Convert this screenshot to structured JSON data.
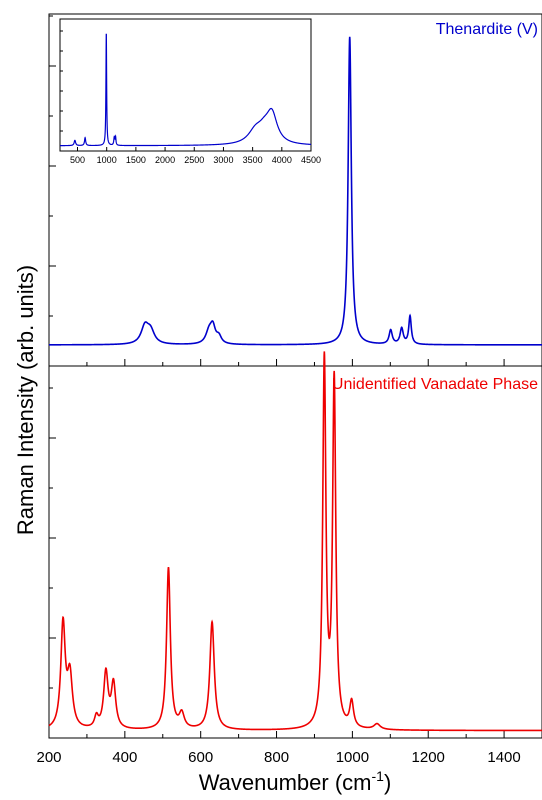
{
  "chart_data": [
    {
      "type": "line",
      "panel": "top",
      "title": "Thenardite (V)",
      "color": "#0000cc",
      "xlim": [
        200,
        1500
      ],
      "ylim": [
        0,
        1
      ],
      "baseline": 0.06,
      "peaks": [
        {
          "x": 453,
          "h": 0.05,
          "w": 12
        },
        {
          "x": 468,
          "h": 0.035,
          "w": 12
        },
        {
          "x": 622,
          "h": 0.035,
          "w": 10
        },
        {
          "x": 632,
          "h": 0.045,
          "w": 8
        },
        {
          "x": 648,
          "h": 0.02,
          "w": 8
        },
        {
          "x": 993,
          "h": 0.875,
          "w": 5
        },
        {
          "x": 1101,
          "h": 0.04,
          "w": 5
        },
        {
          "x": 1130,
          "h": 0.045,
          "w": 5
        },
        {
          "x": 1152,
          "h": 0.08,
          "w": 4
        }
      ],
      "inset": {
        "color": "#0000cc",
        "xlim": [
          200,
          4500
        ],
        "xticks": [
          500,
          1000,
          1500,
          2000,
          2500,
          3000,
          3500,
          4000,
          4500
        ],
        "xtick_labels": [
          "500",
          "1000",
          "1500",
          "2000",
          "2500",
          "3000",
          "3500",
          "4000",
          "4500"
        ],
        "baseline": 0.04,
        "peaks": [
          {
            "x": 455,
            "h": 0.04,
            "w": 15
          },
          {
            "x": 630,
            "h": 0.06,
            "w": 12
          },
          {
            "x": 993,
            "h": 0.86,
            "w": 7
          },
          {
            "x": 1130,
            "h": 0.06,
            "w": 10
          },
          {
            "x": 1152,
            "h": 0.06,
            "w": 8
          },
          {
            "x": 3550,
            "h": 0.1,
            "w": 150
          },
          {
            "x": 3830,
            "h": 0.22,
            "w": 110
          },
          {
            "x": 3700,
            "h": 0.08,
            "w": 120
          }
        ]
      }
    },
    {
      "type": "line",
      "panel": "bottom",
      "title": "Unidentified Vanadate Phase",
      "color": "#ee0000",
      "xlim": [
        200,
        1500
      ],
      "ylim": [
        0,
        1
      ],
      "baseline": 0.02,
      "peaks": [
        {
          "x": 237,
          "h": 0.28,
          "w": 7
        },
        {
          "x": 255,
          "h": 0.14,
          "w": 8
        },
        {
          "x": 325,
          "h": 0.03,
          "w": 6
        },
        {
          "x": 350,
          "h": 0.15,
          "w": 7
        },
        {
          "x": 370,
          "h": 0.12,
          "w": 7
        },
        {
          "x": 515,
          "h": 0.435,
          "w": 6
        },
        {
          "x": 550,
          "h": 0.04,
          "w": 8
        },
        {
          "x": 630,
          "h": 0.29,
          "w": 7
        },
        {
          "x": 926,
          "h": 0.985,
          "w": 5
        },
        {
          "x": 952,
          "h": 0.93,
          "w": 5
        },
        {
          "x": 998,
          "h": 0.07,
          "w": 6
        },
        {
          "x": 1065,
          "h": 0.015,
          "w": 10
        }
      ],
      "xticks": [
        200,
        400,
        600,
        800,
        1000,
        1200,
        1400
      ],
      "xtick_labels": [
        "200",
        "400",
        "600",
        "800",
        "1000",
        "1200",
        "1400"
      ]
    }
  ],
  "axes": {
    "xlabel_main": "Wavenumber (cm",
    "xlabel_sup": "-1",
    "xlabel_close": ")",
    "ylabel": "Raman Intensity (arb. units)"
  }
}
